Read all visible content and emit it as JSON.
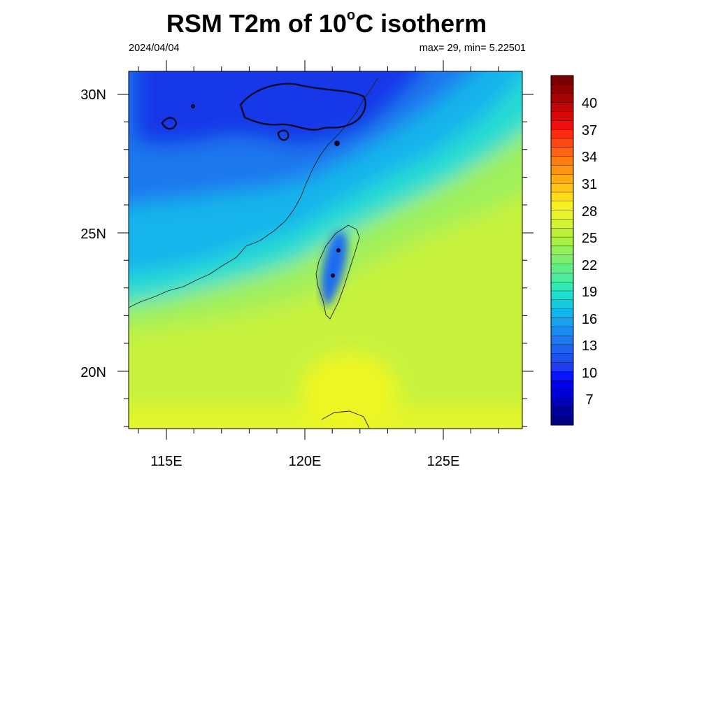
{
  "title": {
    "main": "RSM T2m of 10",
    "degree": "o",
    "unit": "C isotherm"
  },
  "date": "2024/04/04",
  "maxmin": "max= 29, min= 5.22501",
  "lat_labels": [
    "30N",
    "25N",
    "20N"
  ],
  "lon_labels": [
    "115E",
    "120E",
    "125E"
  ],
  "colorbar": {
    "labels": [
      "40",
      "37",
      "34",
      "31",
      "28",
      "25",
      "22",
      "19",
      "16",
      "13",
      "10",
      "7"
    ],
    "colors_bottom_to_top": [
      "#000080",
      "#00009a",
      "#0000b8",
      "#0000d4",
      "#0000ee",
      "#0a14ff",
      "#1f3cf0",
      "#1e50ee",
      "#1f64f0",
      "#1e78f0",
      "#1a8ef0",
      "#16a2ee",
      "#12b6ee",
      "#14cade",
      "#1ee0d0",
      "#34e8b6",
      "#4cec9c",
      "#62ee86",
      "#7aef70",
      "#94f05a",
      "#aaf048",
      "#bef03a",
      "#d2f232",
      "#e6f428",
      "#f6f020",
      "#ffdc18",
      "#ffc414",
      "#ffac10",
      "#ff9410",
      "#ff7c10",
      "#ff6410",
      "#ff4810",
      "#ff2c10",
      "#f01010",
      "#d80808",
      "#c00606",
      "#a80404",
      "#900202",
      "#7a0000"
    ]
  },
  "map": {
    "lon_range": [
      113.6,
      127.8
    ],
    "lat_range": [
      17.8,
      31.0
    ],
    "isotherm_level_c": 10,
    "fill_colors": {
      "cold": "#1538e8",
      "cool": "#1b78ee",
      "mild": "#17b4ec",
      "cyan": "#26dcd2",
      "green": "#9ff05c",
      "lime": "#c6f23c",
      "yellow": "#e4f52c"
    }
  }
}
